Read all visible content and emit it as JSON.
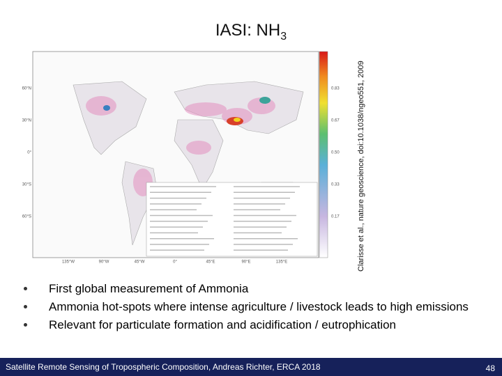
{
  "title": {
    "text": "IASI: NH",
    "subscript": "3"
  },
  "citation": "Clarisse et al., nature geoscience, doi:10.1038/ngeo551, 2009",
  "map": {
    "colorbar_labels": [
      "0.83",
      "0.67",
      "0.50",
      "0.33",
      "0.17"
    ],
    "lat_labels": [
      "60°N",
      "30°N",
      "0°",
      "30°S",
      "60°S"
    ],
    "lon_labels": [
      "135°W",
      "90°W",
      "45°W",
      "0°",
      "45°E",
      "90°E",
      "135°E"
    ]
  },
  "bullets": [
    "First global measurement of Ammonia",
    "Ammonia hot-spots where intense agriculture / livestock leads to high emissions",
    "Relevant for particulate formation and acidification / eutrophication"
  ],
  "footer": {
    "text": "Satellite Remote Sensing of Tropospheric Composition, Andreas Richter, ERCA  2018",
    "page": "48"
  }
}
